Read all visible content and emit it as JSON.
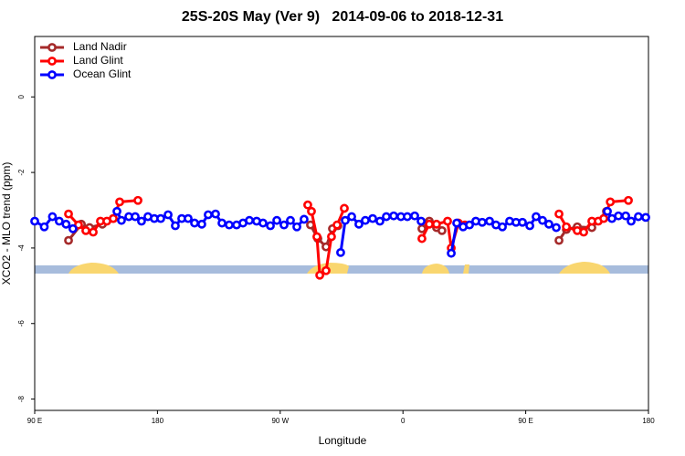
{
  "chart_data": {
    "type": "line",
    "title": "25S-20S May (Ver 9)   2014-09-06 to 2018-12-31",
    "x_label": "Longitude",
    "y_label": "XCO2 - MLO trend (ppm)",
    "xlim": [
      90,
      540
    ],
    "ylim": [
      -8.3,
      1.6
    ],
    "xticks": [
      {
        "value": 90,
        "label": "90 E"
      },
      180,
      {
        "value": 270,
        "label": "90 W"
      },
      {
        "value": 360,
        "label": "0"
      },
      {
        "value": 450,
        "label": "90 E"
      },
      {
        "value": 540,
        "label": "180"
      }
    ],
    "yticks": [
      0,
      -2,
      -4,
      -6,
      -8
    ],
    "grid": false,
    "legend": "top-left",
    "series": [
      {
        "name": "Land Nadir",
        "color": "#a52a2a",
        "x": [
          114.8,
          124.2,
          130.2,
          139.6,
          147.6,
          null,
          292.2,
          297.6,
          303.6,
          308.3,
          312.3,
          null,
          373.9,
          379.3,
          384.6,
          388.6,
          null,
          474.4,
          479.8,
          487.8,
          498.5,
          509.2
        ],
        "values": [
          -3.8,
          -3.37,
          -3.46,
          -3.37,
          -3.22,
          null,
          -3.39,
          -3.75,
          -3.97,
          -3.49,
          -3.41,
          null,
          -3.49,
          -3.29,
          -3.46,
          -3.54,
          null,
          -3.8,
          -3.51,
          -3.44,
          -3.46,
          -3.03
        ]
      },
      {
        "name": "Land Glint",
        "color": "#ff0000",
        "x": [
          114.8,
          122.1,
          127.5,
          132.9,
          138.2,
          142.9,
          147.6,
          152.3,
          165.7,
          null,
          290.2,
          292.9,
          296.9,
          299,
          303.6,
          307.6,
          311.7,
          317,
          null,
          373.9,
          379.3,
          384.6,
          392.7,
          395.4,
          400.7,
          405.4,
          null,
          474.4,
          479.8,
          487.8,
          492.5,
          498.5,
          503.2,
          507.2,
          512,
          525.3
        ],
        "values": [
          -3.1,
          -3.39,
          -3.54,
          -3.58,
          -3.29,
          -3.29,
          -3.22,
          -2.78,
          -2.74,
          null,
          -2.86,
          -3.03,
          -3.7,
          -4.72,
          -4.6,
          -3.7,
          -3.39,
          -2.95,
          null,
          -3.75,
          -3.37,
          -3.37,
          -3.29,
          -4.0,
          -3.34,
          -3.39,
          null,
          -3.1,
          -3.44,
          -3.54,
          -3.58,
          -3.29,
          -3.29,
          -3.22,
          -2.78,
          -2.74
        ]
      },
      {
        "name": "Ocean Glint",
        "color": "#0000ff",
        "x": [
          90,
          97,
          103,
          108,
          113,
          118,
          null,
          150.3,
          153.6,
          159,
          163.7,
          168.3,
          173,
          177.7,
          182.4,
          187.8,
          193.1,
          197.8,
          202.5,
          207.2,
          212.5,
          217.2,
          222.6,
          227.3,
          232.6,
          238,
          242.7,
          247.4,
          252.7,
          257.4,
          262.8,
          267.5,
          272.8,
          277.5,
          282.2,
          287.5,
          null,
          314.3,
          317.7,
          322.4,
          327.7,
          332.4,
          337.8,
          343.1,
          347.8,
          353.2,
          358.5,
          363.2,
          368.6,
          373.3,
          null,
          395.4,
          399.4,
          404.1,
          408.8,
          413.4,
          418.1,
          423.5,
          428.2,
          432.9,
          438.2,
          442.9,
          447.6,
          453,
          457.6,
          462.3,
          467,
          472.4,
          null,
          509.9,
          513.2,
          518,
          523.3,
          527.3,
          532.6,
          538
        ],
        "values": [
          -3.29,
          -3.44,
          -3.17,
          -3.29,
          -3.37,
          -3.49,
          null,
          -3.03,
          -3.27,
          -3.17,
          -3.17,
          -3.29,
          -3.17,
          -3.22,
          -3.22,
          -3.12,
          -3.41,
          -3.22,
          -3.22,
          -3.34,
          -3.37,
          -3.12,
          -3.1,
          -3.34,
          -3.39,
          -3.39,
          -3.34,
          -3.27,
          -3.29,
          -3.34,
          -3.41,
          -3.27,
          -3.39,
          -3.27,
          -3.44,
          -3.24,
          null,
          -4.12,
          -3.27,
          -3.17,
          -3.37,
          -3.27,
          -3.22,
          -3.29,
          -3.17,
          -3.15,
          -3.17,
          -3.17,
          -3.15,
          -3.29,
          null,
          -4.14,
          -3.34,
          -3.44,
          -3.39,
          -3.29,
          -3.32,
          -3.29,
          -3.39,
          -3.44,
          -3.29,
          -3.32,
          -3.32,
          -3.41,
          -3.17,
          -3.27,
          -3.37,
          -3.46,
          null,
          -3.03,
          -3.22,
          -3.15,
          -3.15,
          -3.29,
          -3.17,
          -3.19
        ]
      }
    ]
  }
}
